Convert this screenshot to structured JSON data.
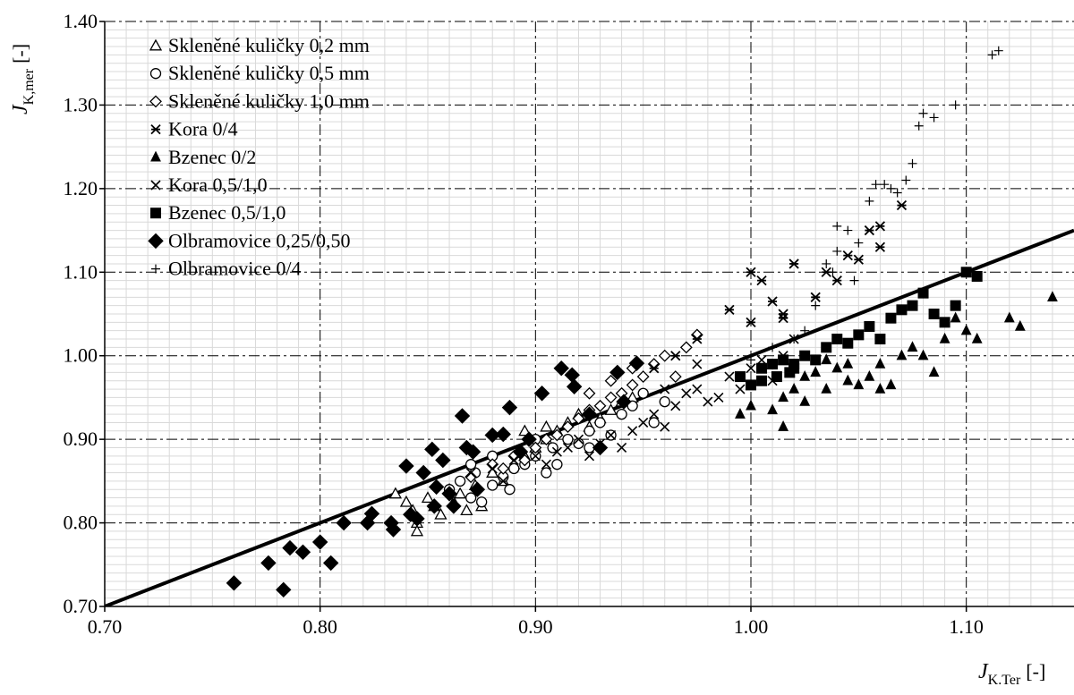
{
  "chart_data": {
    "type": "scatter",
    "xlabel": {
      "symbol": "J",
      "subscript": "K.Ter",
      "unit": "[-]"
    },
    "ylabel": {
      "symbol": "J",
      "subscript": "K,mer",
      "unit": "[-]"
    },
    "xlim": [
      0.7,
      1.15
    ],
    "ylim": [
      0.7,
      1.4
    ],
    "x_ticks": [
      "0.70",
      "0.80",
      "0.90",
      "1.00",
      "1.10"
    ],
    "y_ticks": [
      "0.70",
      "0.80",
      "0.90",
      "1.00",
      "1.10",
      "1.20",
      "1.30",
      "1.40"
    ],
    "grid": true,
    "legend_position": "top-left",
    "reference_line": {
      "x": [
        0.7,
        1.15
      ],
      "y": [
        0.7,
        1.15
      ]
    },
    "series": [
      {
        "name": "Skleněné kuličky 0,2 mm",
        "marker": "triangle-open",
        "points": [
          [
            0.835,
            0.835
          ],
          [
            0.84,
            0.825
          ],
          [
            0.843,
            0.815
          ],
          [
            0.845,
            0.8
          ],
          [
            0.845,
            0.79
          ],
          [
            0.85,
            0.83
          ],
          [
            0.853,
            0.82
          ],
          [
            0.856,
            0.81
          ],
          [
            0.86,
            0.84
          ],
          [
            0.862,
            0.825
          ],
          [
            0.865,
            0.835
          ],
          [
            0.868,
            0.815
          ],
          [
            0.872,
            0.845
          ],
          [
            0.875,
            0.82
          ],
          [
            0.88,
            0.86
          ],
          [
            0.885,
            0.85
          ],
          [
            0.89,
            0.87
          ],
          [
            0.895,
            0.88
          ],
          [
            0.9,
            0.89
          ],
          [
            0.905,
            0.9
          ],
          [
            0.91,
            0.91
          ],
          [
            0.915,
            0.92
          ],
          [
            0.92,
            0.93
          ],
          [
            0.925,
            0.915
          ],
          [
            0.93,
            0.925
          ],
          [
            0.935,
            0.935
          ],
          [
            0.94,
            0.945
          ],
          [
            0.945,
            0.95
          ],
          [
            0.895,
            0.91
          ],
          [
            0.905,
            0.915
          ]
        ]
      },
      {
        "name": "Skleněné kuličky 0,5 mm",
        "marker": "circle-open",
        "points": [
          [
            0.86,
            0.84
          ],
          [
            0.865,
            0.85
          ],
          [
            0.87,
            0.83
          ],
          [
            0.872,
            0.86
          ],
          [
            0.875,
            0.825
          ],
          [
            0.88,
            0.845
          ],
          [
            0.885,
            0.855
          ],
          [
            0.888,
            0.84
          ],
          [
            0.89,
            0.865
          ],
          [
            0.895,
            0.87
          ],
          [
            0.9,
            0.88
          ],
          [
            0.905,
            0.86
          ],
          [
            0.908,
            0.89
          ],
          [
            0.91,
            0.87
          ],
          [
            0.915,
            0.9
          ],
          [
            0.92,
            0.895
          ],
          [
            0.925,
            0.91
          ],
          [
            0.93,
            0.92
          ],
          [
            0.935,
            0.905
          ],
          [
            0.94,
            0.93
          ],
          [
            0.945,
            0.94
          ],
          [
            0.95,
            0.955
          ],
          [
            0.955,
            0.92
          ],
          [
            0.96,
            0.945
          ],
          [
            0.87,
            0.87
          ],
          [
            0.88,
            0.88
          ],
          [
            0.9,
            0.9
          ],
          [
            0.925,
            0.89
          ]
        ]
      },
      {
        "name": "Skleněné kuličky 1,0 mm",
        "marker": "diamond-open",
        "points": [
          [
            0.87,
            0.855
          ],
          [
            0.88,
            0.87
          ],
          [
            0.885,
            0.865
          ],
          [
            0.89,
            0.88
          ],
          [
            0.895,
            0.875
          ],
          [
            0.9,
            0.89
          ],
          [
            0.905,
            0.9
          ],
          [
            0.91,
            0.905
          ],
          [
            0.915,
            0.915
          ],
          [
            0.92,
            0.925
          ],
          [
            0.925,
            0.935
          ],
          [
            0.93,
            0.94
          ],
          [
            0.935,
            0.95
          ],
          [
            0.94,
            0.955
          ],
          [
            0.945,
            0.965
          ],
          [
            0.95,
            0.975
          ],
          [
            0.955,
            0.99
          ],
          [
            0.96,
            1.0
          ],
          [
            0.965,
            0.975
          ],
          [
            0.97,
            1.01
          ],
          [
            0.975,
            1.025
          ],
          [
            0.925,
            0.955
          ],
          [
            0.945,
            0.985
          ],
          [
            0.935,
            0.97
          ]
        ]
      },
      {
        "name": "Kora 0/4",
        "marker": "asterisk",
        "points": [
          [
            0.99,
            1.055
          ],
          [
            1.0,
            1.04
          ],
          [
            1.005,
            1.09
          ],
          [
            1.01,
            1.065
          ],
          [
            1.015,
            1.05
          ],
          [
            1.02,
            1.11
          ],
          [
            1.03,
            1.07
          ],
          [
            1.035,
            1.1
          ],
          [
            1.04,
            1.09
          ],
          [
            1.045,
            1.12
          ],
          [
            1.05,
            1.115
          ],
          [
            1.055,
            1.15
          ],
          [
            1.06,
            1.155
          ],
          [
            1.06,
            1.13
          ],
          [
            1.07,
            1.18
          ],
          [
            1.0,
            1.1
          ],
          [
            1.015,
            1.045
          ],
          [
            0.975,
            1.02
          ],
          [
            0.965,
            1.0
          ],
          [
            0.955,
            0.985
          ]
        ]
      },
      {
        "name": "Bzenec 0/2",
        "marker": "triangle-filled",
        "points": [
          [
            0.995,
            0.93
          ],
          [
            1.0,
            0.94
          ],
          [
            1.01,
            0.935
          ],
          [
            1.015,
            0.95
          ],
          [
            1.02,
            0.96
          ],
          [
            1.015,
            0.915
          ],
          [
            1.025,
            0.945
          ],
          [
            1.03,
            0.98
          ],
          [
            1.035,
            0.96
          ],
          [
            1.04,
            0.985
          ],
          [
            1.045,
            0.97
          ],
          [
            1.05,
            0.965
          ],
          [
            1.055,
            0.975
          ],
          [
            1.06,
            0.99
          ],
          [
            1.065,
            0.965
          ],
          [
            1.07,
            1.0
          ],
          [
            1.075,
            1.01
          ],
          [
            1.08,
            1.0
          ],
          [
            1.085,
            0.98
          ],
          [
            1.09,
            1.02
          ],
          [
            1.095,
            1.045
          ],
          [
            1.1,
            1.03
          ],
          [
            1.105,
            1.02
          ],
          [
            1.12,
            1.045
          ],
          [
            1.125,
            1.035
          ],
          [
            1.14,
            1.07
          ],
          [
            1.06,
            0.96
          ],
          [
            1.045,
            0.99
          ],
          [
            1.025,
            0.975
          ],
          [
            1.035,
            0.995
          ]
        ]
      },
      {
        "name": "Kora 0,5/1,0",
        "marker": "cross",
        "points": [
          [
            0.87,
            0.86
          ],
          [
            0.88,
            0.865
          ],
          [
            0.885,
            0.85
          ],
          [
            0.89,
            0.875
          ],
          [
            0.9,
            0.88
          ],
          [
            0.905,
            0.87
          ],
          [
            0.91,
            0.885
          ],
          [
            0.915,
            0.89
          ],
          [
            0.92,
            0.9
          ],
          [
            0.925,
            0.88
          ],
          [
            0.93,
            0.895
          ],
          [
            0.935,
            0.905
          ],
          [
            0.94,
            0.89
          ],
          [
            0.945,
            0.91
          ],
          [
            0.95,
            0.92
          ],
          [
            0.955,
            0.93
          ],
          [
            0.96,
            0.915
          ],
          [
            0.965,
            0.94
          ],
          [
            0.97,
            0.955
          ],
          [
            0.975,
            0.96
          ],
          [
            0.98,
            0.945
          ],
          [
            0.985,
            0.95
          ],
          [
            0.99,
            0.975
          ],
          [
            0.995,
            0.96
          ],
          [
            1.0,
            0.985
          ],
          [
            1.005,
            0.995
          ],
          [
            1.01,
            0.97
          ],
          [
            1.015,
            1.0
          ],
          [
            1.02,
            1.02
          ],
          [
            0.975,
            0.99
          ],
          [
            0.96,
            0.96
          ]
        ]
      },
      {
        "name": "Bzenec 0,5/1,0",
        "marker": "square-filled",
        "points": [
          [
            0.995,
            0.975
          ],
          [
            1.0,
            0.965
          ],
          [
            1.005,
            0.985
          ],
          [
            1.01,
            0.99
          ],
          [
            1.012,
            0.975
          ],
          [
            1.015,
            0.995
          ],
          [
            1.018,
            0.98
          ],
          [
            1.02,
            0.99
          ],
          [
            1.025,
            1.0
          ],
          [
            1.03,
            0.995
          ],
          [
            1.035,
            1.01
          ],
          [
            1.04,
            1.02
          ],
          [
            1.045,
            1.015
          ],
          [
            1.05,
            1.025
          ],
          [
            1.055,
            1.035
          ],
          [
            1.06,
            1.02
          ],
          [
            1.065,
            1.045
          ],
          [
            1.07,
            1.055
          ],
          [
            1.075,
            1.06
          ],
          [
            1.08,
            1.075
          ],
          [
            1.085,
            1.05
          ],
          [
            1.09,
            1.04
          ],
          [
            1.095,
            1.06
          ],
          [
            1.1,
            1.1
          ],
          [
            1.105,
            1.095
          ],
          [
            1.005,
            0.97
          ],
          [
            1.02,
            0.985
          ]
        ]
      },
      {
        "name": "Olbramovice 0,25/0,50",
        "marker": "diamond-filled",
        "points": [
          [
            0.76,
            0.728
          ],
          [
            0.776,
            0.752
          ],
          [
            0.786,
            0.77
          ],
          [
            0.792,
            0.765
          ],
          [
            0.783,
            0.72
          ],
          [
            0.8,
            0.777
          ],
          [
            0.805,
            0.752
          ],
          [
            0.811,
            0.8
          ],
          [
            0.822,
            0.8
          ],
          [
            0.824,
            0.811
          ],
          [
            0.833,
            0.8
          ],
          [
            0.834,
            0.792
          ],
          [
            0.84,
            0.868
          ],
          [
            0.842,
            0.81
          ],
          [
            0.845,
            0.805
          ],
          [
            0.848,
            0.86
          ],
          [
            0.852,
            0.888
          ],
          [
            0.854,
            0.843
          ],
          [
            0.857,
            0.875
          ],
          [
            0.862,
            0.82
          ],
          [
            0.866,
            0.928
          ],
          [
            0.868,
            0.89
          ],
          [
            0.871,
            0.885
          ],
          [
            0.873,
            0.84
          ],
          [
            0.88,
            0.905
          ],
          [
            0.885,
            0.906
          ],
          [
            0.888,
            0.938
          ],
          [
            0.893,
            0.885
          ],
          [
            0.897,
            0.9
          ],
          [
            0.903,
            0.955
          ],
          [
            0.912,
            0.985
          ],
          [
            0.917,
            0.977
          ],
          [
            0.918,
            0.963
          ],
          [
            0.925,
            0.93
          ],
          [
            0.93,
            0.89
          ],
          [
            0.938,
            0.98
          ],
          [
            0.941,
            0.945
          ],
          [
            0.947,
            0.991
          ],
          [
            0.853,
            0.82
          ],
          [
            0.86,
            0.835
          ]
        ]
      },
      {
        "name": "Olbramovice 0/4",
        "marker": "plus",
        "points": [
          [
            1.0,
            0.995
          ],
          [
            1.01,
            1.01
          ],
          [
            1.02,
            1.02
          ],
          [
            1.025,
            1.03
          ],
          [
            1.03,
            1.06
          ],
          [
            1.035,
            1.11
          ],
          [
            1.038,
            1.1
          ],
          [
            1.04,
            1.155
          ],
          [
            1.04,
            1.125
          ],
          [
            1.045,
            1.15
          ],
          [
            1.048,
            1.09
          ],
          [
            1.05,
            1.135
          ],
          [
            1.055,
            1.185
          ],
          [
            1.058,
            1.205
          ],
          [
            1.062,
            1.205
          ],
          [
            1.065,
            1.2
          ],
          [
            1.068,
            1.195
          ],
          [
            1.072,
            1.21
          ],
          [
            1.075,
            1.23
          ],
          [
            1.078,
            1.275
          ],
          [
            1.08,
            1.29
          ],
          [
            1.085,
            1.285
          ],
          [
            1.095,
            1.3
          ],
          [
            1.112,
            1.36
          ],
          [
            1.115,
            1.365
          ]
        ]
      }
    ]
  }
}
